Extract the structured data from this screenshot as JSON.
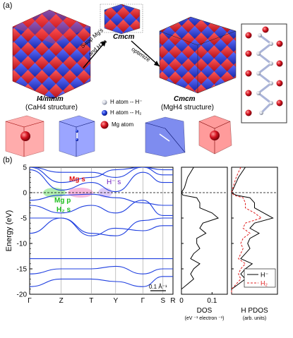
{
  "panel_a": {
    "label": "(a)",
    "left_structure": {
      "name": "I4/mmm",
      "sub": "(CaH4 structure)"
    },
    "middle_structure": {
      "name": "Cmcm"
    },
    "right_structure": {
      "name": "Cmcm",
      "sub": "(MgH4 structure)"
    },
    "arrow_swap_line1": "Swap Mg's",
    "arrow_swap_line2": "and H2's",
    "arrow_optimize": "optimize",
    "legend": [
      {
        "label": "H atom -- H⁻",
        "color": "#d8dce6"
      },
      {
        "label": "H atom -- H₂",
        "color": "#1f3fdc"
      },
      {
        "label": "Mg atom",
        "color": "#d41420"
      }
    ],
    "colors": {
      "red": "#e8242c",
      "blue": "#2a3fe0",
      "dark_red": "#8a1020"
    }
  },
  "panel_b": {
    "label": "(b)",
    "annotations": {
      "mg_s": "Mg s",
      "h_minus_s": "H⁻ s",
      "mg_p": "Mg p",
      "h2_s": "H₂ s",
      "scale": "0.1 Å⁻¹"
    }
  },
  "chart_data": [
    {
      "type": "line",
      "ylabel": "Energy (eV)",
      "ylim": [
        -20,
        5
      ],
      "y_ticks": [
        5,
        0,
        -5,
        -10,
        -15,
        -20
      ],
      "k_path": [
        "Γ",
        "Z",
        "T",
        "Y",
        "Γ",
        "S",
        "R"
      ],
      "k_positions": [
        0,
        0.22,
        0.43,
        0.6,
        0.79,
        0.93,
        1.0
      ],
      "fermi_level": 0,
      "bands": [
        {
          "x": [
            0,
            0.22,
            0.43,
            0.6,
            0.79,
            0.93,
            1.0
          ],
          "y": [
            -18.5,
            -17,
            -17,
            -17.5,
            -18.5,
            -16.5,
            -16.5
          ]
        },
        {
          "x": [
            0,
            0.22,
            0.43,
            0.6,
            0.79,
            0.93,
            1.0
          ],
          "y": [
            -16,
            -15,
            -15,
            -14.5,
            -16,
            -15,
            -15
          ]
        },
        {
          "x": [
            0,
            0.22,
            0.43,
            0.6,
            0.79,
            0.93,
            1.0
          ],
          "y": [
            -13,
            -13,
            -13,
            -13,
            -13,
            -13,
            -13
          ]
        },
        {
          "x": [
            0,
            0.22,
            0.43,
            0.6,
            0.79,
            0.93,
            1.0
          ],
          "y": [
            -8,
            -5,
            -8.5,
            -7,
            -7.5,
            -6.5,
            -6.5
          ]
        },
        {
          "x": [
            0,
            0.22,
            0.43,
            0.6,
            0.79,
            0.93,
            1.0
          ],
          "y": [
            -5,
            -5,
            -8,
            -8.5,
            -5.5,
            -5,
            -5
          ]
        },
        {
          "x": [
            0,
            0.22,
            0.43,
            0.6,
            0.79,
            0.93,
            1.0
          ],
          "y": [
            -2.5,
            -4,
            -2.5,
            -4,
            -1.5,
            -4.5,
            -4.5
          ]
        },
        {
          "x": [
            0,
            0.22,
            0.43,
            0.6,
            0.79,
            0.93,
            1.0
          ],
          "y": [
            -1.5,
            -0.5,
            -0.3,
            -1,
            -2,
            -2.5,
            -2.5
          ]
        },
        {
          "x": [
            0,
            0.22,
            0.43,
            0.6,
            0.79,
            0.93,
            1.0
          ],
          "y": [
            4.5,
            0.5,
            2,
            0.2,
            4,
            2,
            2
          ]
        },
        {
          "x": [
            0,
            0.22,
            0.43,
            0.6,
            0.79,
            0.93,
            1.0
          ],
          "y": [
            5,
            2,
            3,
            4.5,
            5,
            3.5,
            3.5
          ]
        },
        {
          "x": [
            0,
            0.22,
            0.43,
            0.6,
            0.79,
            0.93,
            1.0
          ],
          "y": [
            5,
            4,
            4,
            3,
            5,
            4.5,
            4.5
          ]
        }
      ]
    },
    {
      "type": "line",
      "xlabel": "DOS",
      "xlabel_units": "(eV ⁻¹ electron ⁻¹)",
      "xlim": [
        0,
        0.15
      ],
      "x_ticks": [
        0,
        0.1
      ],
      "ylim": [
        -20,
        5
      ],
      "series": [
        {
          "energy": [
            5,
            3,
            1,
            0,
            -0.5,
            -1,
            -2,
            -3,
            -4,
            -5,
            -6,
            -7,
            -8,
            -9,
            -10,
            -11,
            -12,
            -13,
            -14,
            -15,
            -16,
            -17,
            -18,
            -19,
            -20
          ],
          "dos": [
            0.04,
            0.02,
            0.01,
            0.0,
            0.005,
            0.05,
            0.06,
            0.06,
            0.1,
            0.12,
            0.07,
            0.06,
            0.08,
            0.05,
            0.05,
            0.06,
            0.04,
            0.03,
            0.06,
            0.04,
            0.03,
            0.04,
            0.02,
            0.0,
            0.0
          ]
        }
      ]
    },
    {
      "type": "line",
      "xlabel": "H PDOS",
      "xlabel_units": "(arb. units)",
      "ylim": [
        -20,
        5
      ],
      "legend_position": "bottom-right",
      "series": [
        {
          "name": "H⁻",
          "color": "#000000",
          "energy": [
            5,
            3,
            1,
            0,
            -0.5,
            -1,
            -2,
            -3,
            -4,
            -5,
            -6,
            -7,
            -8,
            -9,
            -10,
            -11,
            -12,
            -13,
            -14,
            -15,
            -16,
            -17,
            -18,
            -19,
            -20
          ],
          "pdos": [
            0.3,
            0.15,
            0.05,
            0.0,
            0.1,
            0.4,
            0.5,
            0.5,
            0.7,
            0.9,
            0.5,
            0.4,
            0.6,
            0.4,
            0.35,
            0.4,
            0.3,
            0.2,
            0.45,
            0.3,
            0.2,
            0.3,
            0.15,
            0.0,
            0.0
          ]
        },
        {
          "name": "H₂",
          "color": "#e02020",
          "energy": [
            5,
            3,
            1,
            0,
            -0.5,
            -1,
            -2,
            -3,
            -4,
            -5,
            -6,
            -7,
            -8,
            -9,
            -10,
            -11,
            -12,
            -13,
            -14,
            -15,
            -16,
            -17,
            -18,
            -19,
            -20
          ],
          "pdos": [
            0.2,
            0.1,
            0.03,
            0.0,
            0.05,
            0.25,
            0.3,
            0.3,
            0.5,
            0.65,
            0.3,
            0.25,
            0.4,
            0.25,
            0.2,
            0.25,
            0.2,
            0.15,
            0.3,
            0.2,
            0.15,
            0.2,
            0.1,
            0.0,
            0.0
          ]
        }
      ]
    }
  ]
}
